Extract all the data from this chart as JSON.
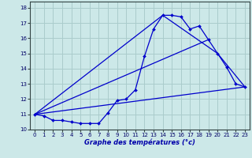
{
  "title": "Graphe des températures (°c)",
  "bg_color": "#cce8e8",
  "grid_color": "#aacccc",
  "line_color": "#0000cc",
  "xlim": [
    -0.5,
    23.5
  ],
  "ylim": [
    10,
    18.4
  ],
  "xticks": [
    0,
    1,
    2,
    3,
    4,
    5,
    6,
    7,
    8,
    9,
    10,
    11,
    12,
    13,
    14,
    15,
    16,
    17,
    18,
    19,
    20,
    21,
    22,
    23
  ],
  "yticks": [
    10,
    11,
    12,
    13,
    14,
    15,
    16,
    17,
    18
  ],
  "series1": {
    "x": [
      0,
      1,
      2,
      3,
      4,
      5,
      6,
      7,
      8,
      9,
      10,
      11,
      12,
      13,
      14,
      15,
      16,
      17,
      18,
      19,
      20,
      21,
      22,
      23
    ],
    "y": [
      11.0,
      10.9,
      10.6,
      10.6,
      10.5,
      10.4,
      10.4,
      10.4,
      11.1,
      11.9,
      12.0,
      12.6,
      14.8,
      16.6,
      17.5,
      17.5,
      17.4,
      16.6,
      16.8,
      15.9,
      15.0,
      14.1,
      13.0,
      12.8
    ]
  },
  "series2": {
    "x": [
      0,
      19
    ],
    "y": [
      11.0,
      15.9
    ]
  },
  "series3": {
    "x": [
      0,
      23
    ],
    "y": [
      11.0,
      12.8
    ]
  },
  "series4": {
    "x": [
      0,
      14,
      20,
      23
    ],
    "y": [
      11.0,
      17.5,
      15.0,
      12.8
    ]
  }
}
